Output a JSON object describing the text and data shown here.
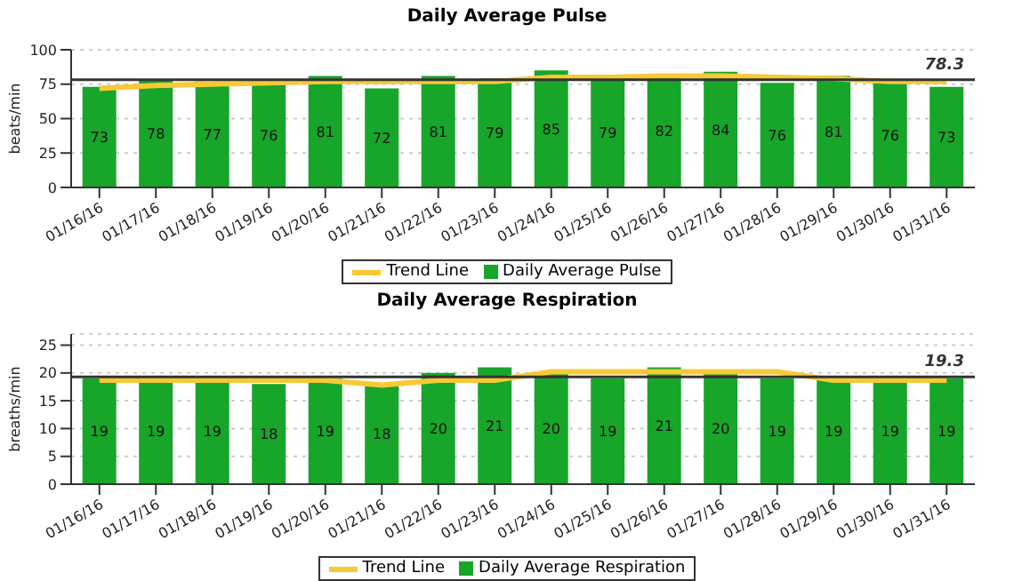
{
  "chart_data": [
    {
      "type": "bar",
      "title": "Daily Average Pulse",
      "ylabel": "beats/min",
      "categories": [
        "01/16/16",
        "01/17/16",
        "01/18/16",
        "01/19/16",
        "01/20/16",
        "01/21/16",
        "01/22/16",
        "01/23/16",
        "01/24/16",
        "01/25/16",
        "01/26/16",
        "01/27/16",
        "01/28/16",
        "01/29/16",
        "01/30/16",
        "01/31/16"
      ],
      "series": [
        {
          "name": "Trend Line",
          "type": "line",
          "color": "#f7c934",
          "values": [
            72,
            74,
            75,
            76,
            77,
            77,
            77,
            77,
            80,
            80,
            81,
            81,
            80,
            79,
            77,
            77
          ]
        },
        {
          "name": "Daily Average Pulse",
          "type": "bar",
          "color": "#17a52a",
          "data_labels": true,
          "values": [
            73,
            78,
            77,
            76,
            81,
            72,
            81,
            79,
            85,
            79,
            82,
            84,
            76,
            81,
            76,
            73
          ]
        }
      ],
      "ylim": [
        0,
        100
      ],
      "yticks": [
        0,
        25,
        50,
        75,
        100
      ],
      "grid": "y",
      "legend": "bottom",
      "ref_lines": [
        {
          "axis": "y",
          "value": 78.3,
          "label": "78.3",
          "color": "#333333"
        }
      ]
    },
    {
      "type": "bar",
      "title": "Daily Average Respiration",
      "ylabel": "breaths/min",
      "categories": [
        "01/16/16",
        "01/17/16",
        "01/18/16",
        "01/19/16",
        "01/20/16",
        "01/21/16",
        "01/22/16",
        "01/23/16",
        "01/24/16",
        "01/25/16",
        "01/26/16",
        "01/27/16",
        "01/28/16",
        "01/29/16",
        "01/30/16",
        "01/31/16"
      ],
      "series": [
        {
          "name": "Trend Line",
          "type": "line",
          "color": "#f7c934",
          "values": [
            18.7,
            18.7,
            18.7,
            18.7,
            18.7,
            17.8,
            18.7,
            18.7,
            20.2,
            20.2,
            20.2,
            20.2,
            20.2,
            18.7,
            18.7,
            18.7
          ]
        },
        {
          "name": "Daily Average Respiration",
          "type": "bar",
          "color": "#17a52a",
          "data_labels": true,
          "values": [
            19,
            19,
            19,
            18,
            19,
            18,
            20,
            21,
            20,
            19,
            21,
            20,
            19,
            19,
            19,
            19
          ]
        }
      ],
      "ylim": [
        0,
        27
      ],
      "yticks": [
        0,
        5,
        10,
        15,
        20,
        25
      ],
      "grid": "y",
      "legend": "bottom",
      "ref_lines": [
        {
          "axis": "y",
          "value": 19.3,
          "label": "19.3",
          "color": "#333333"
        }
      ]
    }
  ]
}
